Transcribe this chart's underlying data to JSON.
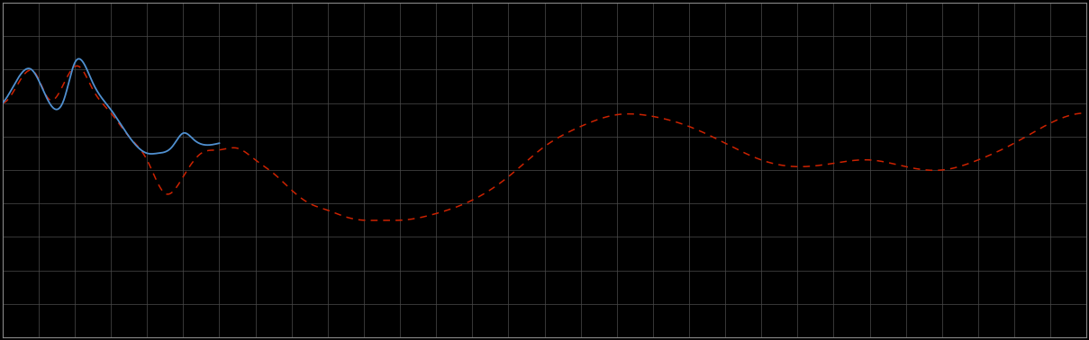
{
  "background_color": "#000000",
  "grid_color": "#4d4d4d",
  "blue_color": "#5090D0",
  "red_color": "#CC2200",
  "figsize": [
    12.09,
    3.78
  ],
  "dpi": 100,
  "spine_color": "#888888",
  "n_x_gridlines": 30,
  "n_y_gridlines": 10,
  "ylim": [
    0,
    10
  ],
  "xlim": [
    0,
    30
  ]
}
